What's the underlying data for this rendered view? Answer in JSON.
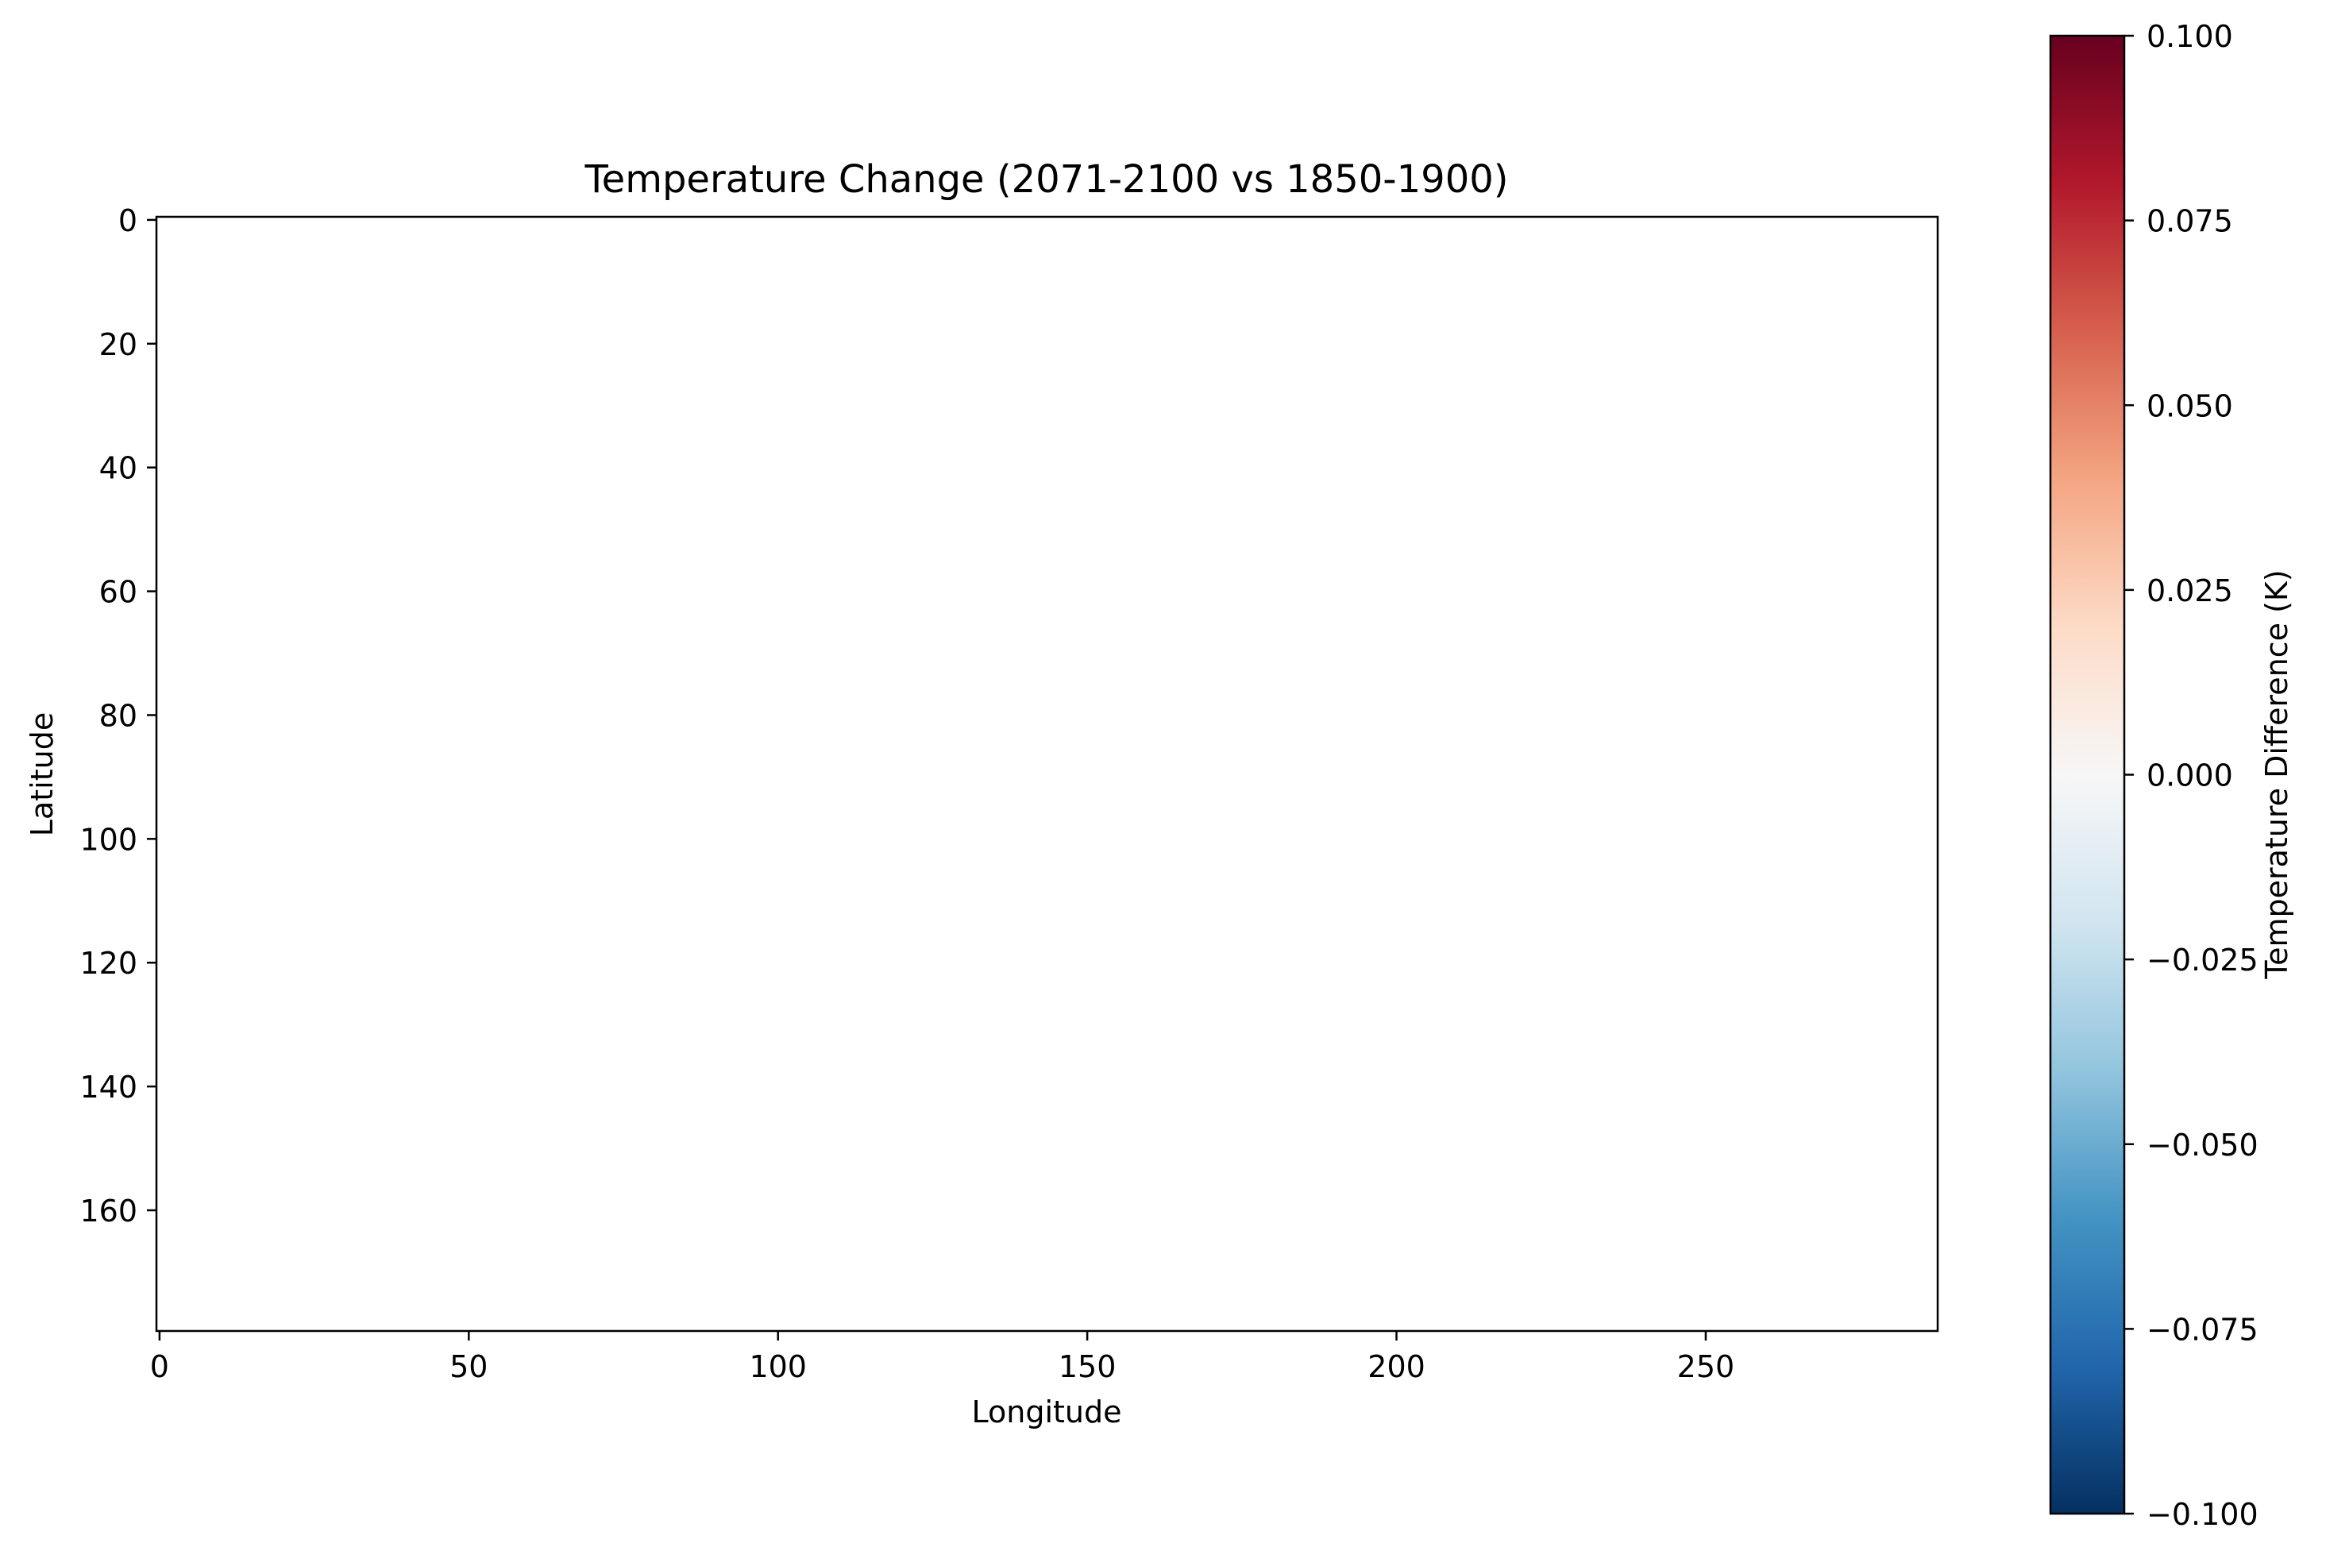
{
  "chart_data": {
    "type": "heatmap",
    "title": "Temperature Change (2071-2100 vs 1850-1900)",
    "xlabel": "Longitude",
    "ylabel": "Latitude",
    "xlim": [
      -0.5,
      287.5
    ],
    "ylim": [
      179.5,
      -0.5
    ],
    "y_inverted": true,
    "x_ticks": [
      0,
      50,
      100,
      150,
      200,
      250
    ],
    "x_tick_labels": [
      "0",
      "50",
      "100",
      "150",
      "200",
      "250"
    ],
    "y_ticks": [
      0,
      20,
      40,
      60,
      80,
      100,
      120,
      140,
      160
    ],
    "y_tick_labels": [
      "0",
      "20",
      "40",
      "60",
      "80",
      "100",
      "120",
      "140",
      "160"
    ],
    "grid": false,
    "legend": "none",
    "values": "all cells ≈ 0 (field renders uniformly white)",
    "colorbar": {
      "label": "Temperature Difference (K)",
      "colormap": "RdBu_r",
      "range": [
        -0.1,
        0.1
      ],
      "ticks": [
        0.1,
        0.075,
        0.05,
        0.025,
        0.0,
        -0.025,
        -0.05,
        -0.075,
        -0.1
      ],
      "tick_labels": [
        "0.100",
        "0.075",
        "0.050",
        "0.025",
        "0.000",
        "−0.025",
        "−0.050",
        "−0.075",
        "−0.100"
      ],
      "colors": [
        "#67001f",
        "#b2182b",
        "#d6604d",
        "#f4a582",
        "#fddbc7",
        "#f7f7f7",
        "#d1e5f0",
        "#92c5de",
        "#4393c3",
        "#2166ac",
        "#053061"
      ]
    }
  }
}
